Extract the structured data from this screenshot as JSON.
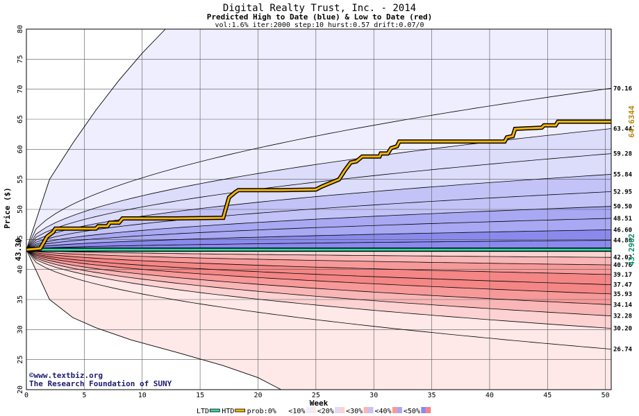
{
  "chart_data": {
    "type": "area",
    "title": "Digital Realty Trust, Inc. - 2014",
    "subtitle": "Predicted High to Date (blue) &  Low to Date (red)",
    "params": "vol:1.6% iter:2000 step:10 hurst:0.57 drift:0.07/0",
    "xlabel": "Week",
    "ylabel": "Price ($)",
    "xlim": [
      0,
      50.5
    ],
    "ylim": [
      20,
      80
    ],
    "x_ticks": [
      0,
      5,
      10,
      15,
      20,
      25,
      30,
      35,
      40,
      45,
      50
    ],
    "y_ticks": [
      20,
      25,
      30,
      35,
      40,
      45,
      50,
      55,
      60,
      65,
      70,
      75,
      80
    ],
    "start_price": 43.3,
    "start_label": "43.30",
    "high_end_label": "64.6344",
    "low_end_label": "43.2962",
    "band_colors": {
      "blue_light": "#eeeeff",
      "blue_2": "#dcdcfb",
      "blue_3": "#c3c3f7",
      "blue_4": "#a8a8f3",
      "blue_5": "#8a8aee",
      "red_light": "#fee8e8",
      "red_2": "#fcd2d2",
      "red_3": "#f9b6b6",
      "red_4": "#f79999",
      "red_5": "#f48686"
    },
    "high_quantiles": [
      {
        "end": 44.86,
        "label": "44.86"
      },
      {
        "end": 46.6,
        "label": "46.60"
      },
      {
        "end": 48.51,
        "label": "48.51"
      },
      {
        "end": 50.5,
        "label": "50.50"
      },
      {
        "end": 52.95,
        "label": "52.95"
      },
      {
        "end": 55.84,
        "label": "55.84"
      },
      {
        "end": 59.28,
        "label": "59.28"
      },
      {
        "end": 63.44,
        "label": "63.44"
      },
      {
        "end": 70.16,
        "label": "70.16"
      }
    ],
    "low_quantiles": [
      {
        "end": 42.02,
        "label": "42.02"
      },
      {
        "end": 40.76,
        "label": "40.76"
      },
      {
        "end": 39.17,
        "label": "39.17"
      },
      {
        "end": 37.47,
        "label": "37.47"
      },
      {
        "end": 35.93,
        "label": "35.93"
      },
      {
        "end": 34.14,
        "label": "34.14"
      },
      {
        "end": 32.28,
        "label": "32.28"
      },
      {
        "end": 30.2,
        "label": "30.20"
      },
      {
        "end": 26.74,
        "label": "26.74"
      }
    ],
    "outer_high_curve": [
      [
        0,
        43.3
      ],
      [
        2,
        55
      ],
      [
        4,
        61
      ],
      [
        6,
        66.5
      ],
      [
        8,
        71.5
      ],
      [
        10,
        76
      ],
      [
        12,
        80
      ]
    ],
    "outer_low_curve": [
      [
        0,
        43.3
      ],
      [
        2,
        35
      ],
      [
        4,
        32
      ],
      [
        6,
        30.3
      ],
      [
        9,
        28.3
      ],
      [
        13,
        26.2
      ],
      [
        17,
        24
      ],
      [
        20,
        22
      ],
      [
        22,
        20
      ]
    ],
    "htd_path": [
      [
        0,
        43.3
      ],
      [
        1.2,
        43.5
      ],
      [
        1.5,
        44.5
      ],
      [
        1.8,
        45.5
      ],
      [
        2.3,
        46.2
      ],
      [
        2.5,
        46.8
      ],
      [
        4,
        46.8
      ],
      [
        6,
        46.8
      ],
      [
        6.2,
        47.2
      ],
      [
        7,
        47.2
      ],
      [
        7.2,
        47.8
      ],
      [
        8,
        47.8
      ],
      [
        8.3,
        48.5
      ],
      [
        13,
        48.5
      ],
      [
        17,
        48.6
      ],
      [
        17.2,
        50
      ],
      [
        17.5,
        52
      ],
      [
        18,
        52.8
      ],
      [
        18.3,
        53.2
      ],
      [
        22,
        53.2
      ],
      [
        25,
        53.3
      ],
      [
        25.5,
        53.8
      ],
      [
        26,
        54.2
      ],
      [
        27,
        55
      ],
      [
        27.5,
        56.5
      ],
      [
        28,
        57.8
      ],
      [
        28.5,
        58
      ],
      [
        29,
        58.8
      ],
      [
        30.5,
        58.8
      ],
      [
        30.6,
        59.3
      ],
      [
        31.2,
        59.3
      ],
      [
        31.5,
        60.2
      ],
      [
        32,
        60.5
      ],
      [
        32.2,
        61.3
      ],
      [
        41.3,
        61.3
      ],
      [
        41.5,
        62
      ],
      [
        42,
        62.2
      ],
      [
        42.2,
        63.4
      ],
      [
        44.5,
        63.6
      ],
      [
        44.7,
        64
      ],
      [
        45.7,
        64
      ],
      [
        45.9,
        64.6
      ],
      [
        50.5,
        64.6
      ]
    ],
    "ltd_value": 43.3,
    "credit_line1": "www.textbiz.org",
    "credit_line2": "The Research Foundation of SUNY",
    "legend": [
      "LTD",
      "HTD",
      "prob:0%",
      "<10%",
      "<20%",
      "<30%",
      "<40%",
      "<50%"
    ]
  }
}
